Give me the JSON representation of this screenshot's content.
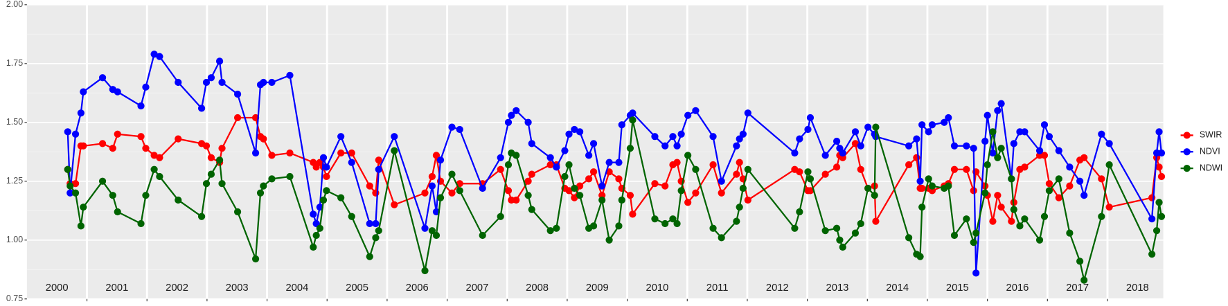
{
  "chart_data": {
    "type": "line",
    "x": [
      2000.68,
      2000.72,
      2000.81,
      2000.9,
      2000.94,
      2001.26,
      2001.43,
      2001.51,
      2001.9,
      2001.98,
      2002.12,
      2002.21,
      2002.52,
      2002.91,
      2002.99,
      2003.07,
      2003.21,
      2003.25,
      2003.51,
      2003.81,
      2003.89,
      2003.94,
      2004.08,
      2004.38,
      2004.77,
      2004.82,
      2004.88,
      2004.94,
      2004.99,
      2005.23,
      2005.41,
      2005.71,
      2005.81,
      2005.86,
      2006.12,
      2006.63,
      2006.75,
      2006.82,
      2006.89,
      2007.08,
      2007.21,
      2007.59,
      2007.89,
      2008.02,
      2008.07,
      2008.15,
      2008.35,
      2008.41,
      2008.72,
      2008.82,
      2008.96,
      2009.03,
      2009.12,
      2009.21,
      2009.36,
      2009.44,
      2009.58,
      2009.7,
      2009.86,
      2009.91,
      2010.05,
      2010.09,
      2010.46,
      2010.63,
      2010.76,
      2010.83,
      2010.9,
      2011.01,
      2011.14,
      2011.43,
      2011.57,
      2011.82,
      2011.87,
      2011.93,
      2012.01,
      2012.79,
      2012.87,
      2013.01,
      2013.05,
      2013.3,
      2013.49,
      2013.54,
      2013.59,
      2013.8,
      2013.89,
      2014.01,
      2014.12,
      2014.14,
      2014.69,
      2014.82,
      2014.88,
      2014.91,
      2015.02,
      2015.08,
      2015.28,
      2015.35,
      2015.45,
      2015.65,
      2015.77,
      2015.81,
      2015.96,
      2016.0,
      2016.09,
      2016.17,
      2016.23,
      2016.4,
      2016.44,
      2016.54,
      2016.62,
      2016.87,
      2016.95,
      2017.03,
      2017.19,
      2017.37,
      2017.54,
      2017.61,
      2017.9,
      2018.03,
      2018.74,
      2018.82,
      2018.86,
      2018.9
    ],
    "series": [
      {
        "name": "SWIR",
        "color": "#ff0000",
        "values": [
          1.3,
          1.24,
          1.24,
          1.4,
          1.4,
          1.41,
          1.39,
          1.45,
          1.44,
          1.39,
          1.36,
          1.35,
          1.43,
          1.41,
          1.4,
          1.35,
          1.33,
          1.39,
          1.52,
          1.52,
          1.44,
          1.43,
          1.36,
          1.37,
          1.33,
          1.31,
          1.33,
          1.31,
          1.27,
          1.37,
          1.37,
          1.23,
          1.2,
          1.34,
          1.15,
          1.2,
          1.27,
          1.36,
          1.25,
          1.2,
          1.24,
          1.24,
          1.3,
          1.21,
          1.17,
          1.17,
          1.25,
          1.28,
          1.32,
          1.32,
          1.22,
          1.21,
          1.18,
          1.23,
          1.26,
          1.29,
          1.19,
          1.29,
          1.26,
          1.22,
          1.19,
          1.11,
          1.24,
          1.23,
          1.32,
          1.33,
          1.25,
          1.16,
          1.2,
          1.32,
          1.2,
          1.28,
          1.33,
          1.26,
          1.17,
          1.3,
          1.29,
          1.21,
          1.21,
          1.28,
          1.31,
          1.36,
          1.35,
          1.41,
          1.3,
          1.22,
          1.23,
          1.08,
          1.32,
          1.35,
          1.22,
          1.22,
          1.22,
          1.21,
          1.23,
          1.24,
          1.3,
          1.3,
          1.21,
          1.29,
          1.23,
          1.19,
          1.08,
          1.19,
          1.14,
          1.08,
          1.16,
          1.3,
          1.31,
          1.36,
          1.36,
          1.24,
          1.18,
          1.23,
          1.34,
          1.35,
          1.26,
          1.14,
          1.18,
          1.35,
          1.31,
          1.27
        ]
      },
      {
        "name": "NDVI",
        "color": "#0000ff",
        "values": [
          1.46,
          1.2,
          1.45,
          1.54,
          1.63,
          1.69,
          1.64,
          1.63,
          1.57,
          1.65,
          1.79,
          1.78,
          1.67,
          1.56,
          1.67,
          1.69,
          1.76,
          1.67,
          1.62,
          1.37,
          1.66,
          1.67,
          1.67,
          1.7,
          1.11,
          1.07,
          1.14,
          1.35,
          1.31,
          1.44,
          1.33,
          1.07,
          1.07,
          1.3,
          1.44,
          1.05,
          1.23,
          1.12,
          1.34,
          1.48,
          1.47,
          1.22,
          1.35,
          1.5,
          1.53,
          1.55,
          1.5,
          1.41,
          1.35,
          1.31,
          1.38,
          1.45,
          1.47,
          1.46,
          1.36,
          1.41,
          1.23,
          1.33,
          1.33,
          1.49,
          1.53,
          1.54,
          1.44,
          1.4,
          1.44,
          1.4,
          1.45,
          1.53,
          1.55,
          1.44,
          1.25,
          1.4,
          1.43,
          1.45,
          1.54,
          1.37,
          1.43,
          1.47,
          1.52,
          1.36,
          1.42,
          1.39,
          1.37,
          1.46,
          1.4,
          1.48,
          1.45,
          1.44,
          1.4,
          1.43,
          1.25,
          1.49,
          1.46,
          1.49,
          1.5,
          1.52,
          1.4,
          1.4,
          1.39,
          0.86,
          1.42,
          1.53,
          1.37,
          1.55,
          1.58,
          1.26,
          1.41,
          1.46,
          1.46,
          1.38,
          1.49,
          1.44,
          1.38,
          1.31,
          1.25,
          1.19,
          1.45,
          1.41,
          1.09,
          1.37,
          1.46,
          1.37
        ]
      },
      {
        "name": "NDWI",
        "color": "#006400",
        "values": [
          1.3,
          1.23,
          1.2,
          1.06,
          1.14,
          1.25,
          1.19,
          1.12,
          1.07,
          1.19,
          1.3,
          1.27,
          1.17,
          1.1,
          1.24,
          1.28,
          1.34,
          1.24,
          1.12,
          0.92,
          1.2,
          1.23,
          1.26,
          1.27,
          0.97,
          1.02,
          1.05,
          1.17,
          1.21,
          1.18,
          1.1,
          0.93,
          1.01,
          1.04,
          1.38,
          0.87,
          1.04,
          1.02,
          1.18,
          1.28,
          1.21,
          1.02,
          1.1,
          1.32,
          1.37,
          1.36,
          1.19,
          1.13,
          1.04,
          1.05,
          1.27,
          1.32,
          1.22,
          1.19,
          1.05,
          1.06,
          1.17,
          1.0,
          1.06,
          1.17,
          1.39,
          1.51,
          1.09,
          1.07,
          1.09,
          1.07,
          1.21,
          1.36,
          1.3,
          1.05,
          1.01,
          1.08,
          1.14,
          1.22,
          1.3,
          1.05,
          1.12,
          1.29,
          1.26,
          1.04,
          1.05,
          1.0,
          0.97,
          1.03,
          1.07,
          1.22,
          1.19,
          1.48,
          1.01,
          0.94,
          0.93,
          1.14,
          1.26,
          1.23,
          1.22,
          1.23,
          1.02,
          1.09,
          0.99,
          1.03,
          1.2,
          1.32,
          1.46,
          1.35,
          1.39,
          1.26,
          1.13,
          1.06,
          1.09,
          1.0,
          1.1,
          1.21,
          1.26,
          1.03,
          0.91,
          0.83,
          1.1,
          1.32,
          0.94,
          1.04,
          1.16,
          1.1
        ]
      }
    ],
    "xlim": [
      2000,
      2018.93
    ],
    "xticks": [
      2001,
      2002,
      2003,
      2004,
      2005,
      2006,
      2007,
      2008,
      2009,
      2010,
      2011,
      2012,
      2013,
      2014,
      2015,
      2016,
      2017,
      2018
    ],
    "year_labels": [
      "2000",
      "2001",
      "2002",
      "2003",
      "2004",
      "2005",
      "2006",
      "2007",
      "2008",
      "2009",
      "2010",
      "2011",
      "2012",
      "2013",
      "2014",
      "2015",
      "2016",
      "2017",
      "2018"
    ],
    "ylim": [
      0.75,
      2.0
    ],
    "yticks": [
      {
        "value": 0.75,
        "label": "0.75"
      },
      {
        "value": 1.0,
        "label": "1.00"
      },
      {
        "value": 1.25,
        "label": "1.25"
      },
      {
        "value": 1.5,
        "label": "1.50"
      },
      {
        "value": 1.75,
        "label": "1.75"
      },
      {
        "value": 2.0,
        "label": "2.00"
      }
    ],
    "grid": true,
    "legend": "right"
  }
}
